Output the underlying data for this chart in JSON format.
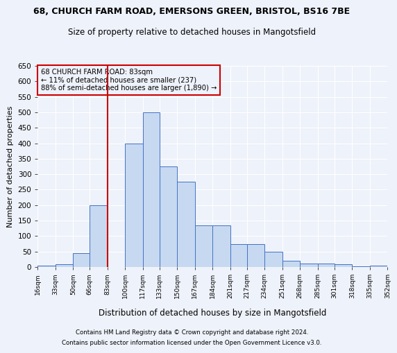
{
  "title1": "68, CHURCH FARM ROAD, EMERSONS GREEN, BRISTOL, BS16 7BE",
  "title2": "Size of property relative to detached houses in Mangotsfield",
  "xlabel": "Distribution of detached houses by size in Mangotsfield",
  "ylabel": "Number of detached properties",
  "bar_color": "#c6d9f1",
  "bar_edge_color": "#4472c4",
  "annotation_box_color": "#cc0000",
  "vline_color": "#cc0000",
  "bins": [
    16,
    33,
    50,
    66,
    83,
    100,
    117,
    133,
    150,
    167,
    184,
    201,
    217,
    234,
    251,
    268,
    285,
    301,
    318,
    335,
    352
  ],
  "bin_labels": [
    "16sqm",
    "33sqm",
    "50sqm",
    "66sqm",
    "83sqm",
    "100sqm",
    "117sqm",
    "133sqm",
    "150sqm",
    "167sqm",
    "184sqm",
    "201sqm",
    "217sqm",
    "234sqm",
    "251sqm",
    "268sqm",
    "285sqm",
    "301sqm",
    "318sqm",
    "335sqm",
    "352sqm"
  ],
  "values": [
    5,
    10,
    45,
    200,
    0,
    400,
    500,
    325,
    275,
    135,
    135,
    75,
    75,
    50,
    20,
    12,
    12,
    8,
    3,
    5,
    2
  ],
  "vline_x": 83,
  "ylim": [
    0,
    650
  ],
  "yticks": [
    0,
    50,
    100,
    150,
    200,
    250,
    300,
    350,
    400,
    450,
    500,
    550,
    600,
    650
  ],
  "annotation_text": "68 CHURCH FARM ROAD: 83sqm\n← 11% of detached houses are smaller (237)\n88% of semi-detached houses are larger (1,890) →",
  "footer1": "Contains HM Land Registry data © Crown copyright and database right 2024.",
  "footer2": "Contains public sector information licensed under the Open Government Licence v3.0.",
  "background_color": "#eef2fa",
  "grid_color": "#ffffff",
  "xlim_left": 16,
  "xlim_right": 352
}
